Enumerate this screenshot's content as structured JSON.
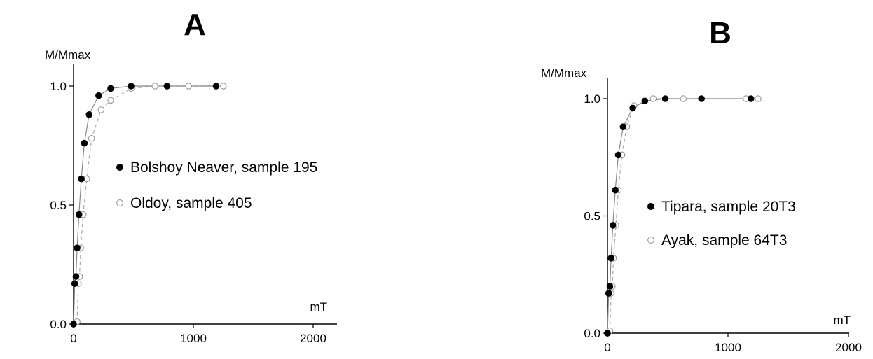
{
  "chart_data": [
    {
      "type": "scatter",
      "panel_label": "A",
      "ylabel": "M/Mmax",
      "xlabel": "mT",
      "xlim": [
        0,
        2000
      ],
      "ylim": [
        0,
        1
      ],
      "x_ticks": [
        "0",
        "1000",
        "2000"
      ],
      "y_ticks": [
        "0.0",
        "0.5",
        "1.0"
      ],
      "legend_position": "center",
      "series": [
        {
          "name": "Bolshoy Neaver, sample 195",
          "marker": "filled-circle",
          "line": "solid",
          "color": "#000000",
          "line_color": "#888888",
          "x": [
            0,
            10,
            20,
            30,
            45,
            65,
            90,
            130,
            210,
            310,
            480,
            780,
            1190
          ],
          "y": [
            0.0,
            0.17,
            0.2,
            0.32,
            0.46,
            0.61,
            0.76,
            0.88,
            0.96,
            0.99,
            1.0,
            1.0,
            1.0
          ]
        },
        {
          "name": "Oldoy, sample 405",
          "marker": "open-circle",
          "line": "dashed",
          "color": "#999999",
          "line_color": "#aaaaaa",
          "x": [
            30,
            40,
            50,
            60,
            80,
            110,
            150,
            230,
            310,
            480,
            680,
            960,
            1250
          ],
          "y": [
            0.01,
            0.17,
            0.2,
            0.32,
            0.46,
            0.61,
            0.78,
            0.9,
            0.94,
            0.99,
            1.0,
            1.0,
            1.0
          ]
        }
      ]
    },
    {
      "type": "scatter",
      "panel_label": "B",
      "ylabel": "M/Mmax",
      "xlabel": "mT",
      "xlim": [
        0,
        2000
      ],
      "ylim": [
        0,
        1
      ],
      "x_ticks": [
        "0",
        "1000",
        "2000"
      ],
      "y_ticks": [
        "0.0",
        "0.5",
        "1.0"
      ],
      "legend_position": "center",
      "series": [
        {
          "name": "Tipara, sample 20T3",
          "marker": "filled-circle",
          "line": "solid",
          "color": "#000000",
          "line_color": "#888888",
          "x": [
            0,
            10,
            20,
            30,
            45,
            65,
            90,
            130,
            210,
            310,
            480,
            780,
            1190
          ],
          "y": [
            0.0,
            0.17,
            0.2,
            0.32,
            0.46,
            0.61,
            0.76,
            0.88,
            0.96,
            0.99,
            1.0,
            1.0,
            1.0
          ]
        },
        {
          "name": "Ayak, sample 64T3",
          "marker": "open-circle",
          "line": "dashed",
          "color": "#999999",
          "line_color": "#aaaaaa",
          "x": [
            20,
            30,
            40,
            50,
            70,
            90,
            120,
            160,
            220,
            380,
            630,
            1150,
            1250
          ],
          "y": [
            0.01,
            0.17,
            0.2,
            0.32,
            0.46,
            0.61,
            0.76,
            0.88,
            0.97,
            1.0,
            1.0,
            1.0,
            1.0
          ]
        }
      ]
    }
  ]
}
